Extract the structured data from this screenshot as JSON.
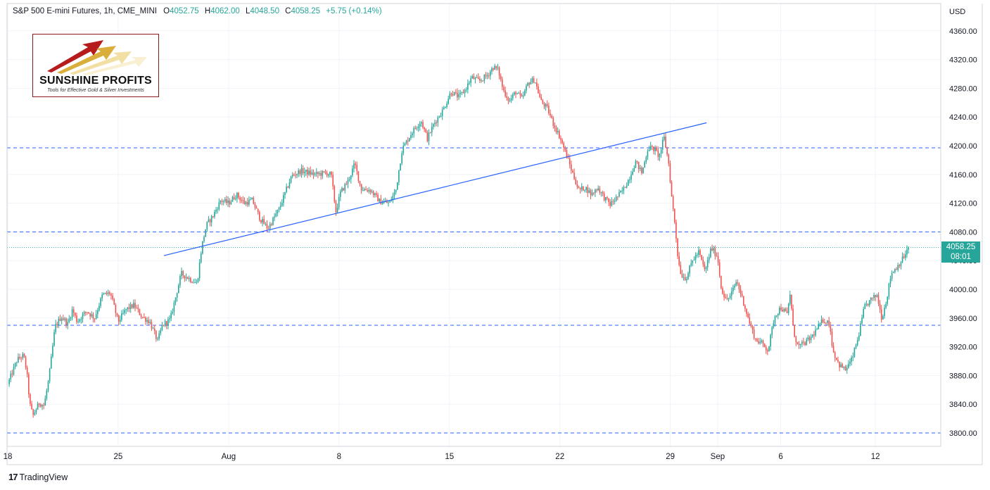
{
  "legend": {
    "symbol": "S&P 500 E-mini Futures, 1h, CME_MINI",
    "open_label": "O",
    "open": "4052.75",
    "high_label": "H",
    "high": "4062.00",
    "low_label": "L",
    "low": "4048.50",
    "close_label": "C",
    "close": "4058.25",
    "change": "+5.75 (+0.14%)"
  },
  "logo": {
    "brand": "SUNSHINE PROFITS",
    "tagline": "Tools for Effective Gold & Silver Investments"
  },
  "price_tag": {
    "price": "4058.25",
    "countdown": "08:01"
  },
  "footer": {
    "icon": "17",
    "brand": "TradingView"
  },
  "colors": {
    "up": "#26a69a",
    "down": "#ef5350",
    "level_line": "#2962ff",
    "trend_line": "#2962ff",
    "grid": "#f0f3fa"
  },
  "chart_data": {
    "type": "candlestick",
    "currency": "USD",
    "ylim": [
      3780,
      4380
    ],
    "y_ticks": [
      "3800.00",
      "3840.00",
      "3880.00",
      "3920.00",
      "3960.00",
      "4000.00",
      "4040.00",
      "4080.00",
      "4120.00",
      "4160.00",
      "4200.00",
      "4240.00",
      "4280.00",
      "4320.00",
      "4360.00"
    ],
    "x_tick_labels": [
      "18",
      "25",
      "Aug",
      "8",
      "15",
      "22",
      "29",
      "Sep",
      "6",
      "12"
    ],
    "x_tick_days": [
      0,
      7,
      14,
      21,
      28,
      35,
      42,
      45,
      49,
      55
    ],
    "xlim_days": [
      0,
      58.4
    ],
    "last_price": 4058.25,
    "horizontal_levels": [
      4197,
      4080,
      3950,
      3800
    ],
    "trend_line": {
      "start": [
        9.9,
        4047
      ],
      "end": [
        44.3,
        4232
      ]
    },
    "price_path": [
      [
        0.0,
        3868
      ],
      [
        0.6,
        3902
      ],
      [
        1.0,
        3908
      ],
      [
        1.2,
        3886
      ],
      [
        1.4,
        3840
      ],
      [
        1.6,
        3824
      ],
      [
        2.0,
        3842
      ],
      [
        2.3,
        3838
      ],
      [
        2.6,
        3875
      ],
      [
        3.0,
        3948
      ],
      [
        3.4,
        3962
      ],
      [
        3.8,
        3952
      ],
      [
        4.1,
        3972
      ],
      [
        4.4,
        3955
      ],
      [
        5.0,
        3970
      ],
      [
        5.5,
        3960
      ],
      [
        6.0,
        3992
      ],
      [
        6.5,
        3995
      ],
      [
        7.0,
        3955
      ],
      [
        7.5,
        3972
      ],
      [
        8.0,
        3978
      ],
      [
        8.5,
        3962
      ],
      [
        9.0,
        3955
      ],
      [
        9.5,
        3928
      ],
      [
        9.8,
        3950
      ],
      [
        10.3,
        3958
      ],
      [
        11.0,
        4022
      ],
      [
        11.5,
        4015
      ],
      [
        12.0,
        4008
      ],
      [
        12.3,
        4060
      ],
      [
        12.6,
        4090
      ],
      [
        13.0,
        4102
      ],
      [
        13.5,
        4124
      ],
      [
        14.0,
        4120
      ],
      [
        14.5,
        4132
      ],
      [
        15.0,
        4120
      ],
      [
        15.5,
        4124
      ],
      [
        16.0,
        4098
      ],
      [
        16.5,
        4085
      ],
      [
        17.2,
        4112
      ],
      [
        18.0,
        4158
      ],
      [
        18.6,
        4165
      ],
      [
        19.5,
        4160
      ],
      [
        20.2,
        4162
      ],
      [
        20.5,
        4160
      ],
      [
        20.8,
        4108
      ],
      [
        21.1,
        4135
      ],
      [
        21.6,
        4152
      ],
      [
        22.0,
        4175
      ],
      [
        22.4,
        4140
      ],
      [
        23.0,
        4138
      ],
      [
        23.6,
        4122
      ],
      [
        24.2,
        4120
      ],
      [
        24.6,
        4138
      ],
      [
        25.0,
        4195
      ],
      [
        25.6,
        4218
      ],
      [
        26.2,
        4235
      ],
      [
        26.6,
        4210
      ],
      [
        27.0,
        4230
      ],
      [
        27.6,
        4250
      ],
      [
        28.1,
        4275
      ],
      [
        28.6,
        4268
      ],
      [
        29.0,
        4278
      ],
      [
        29.4,
        4295
      ],
      [
        29.9,
        4290
      ],
      [
        30.4,
        4298
      ],
      [
        30.8,
        4310
      ],
      [
        31.1,
        4305
      ],
      [
        31.4,
        4278
      ],
      [
        31.8,
        4262
      ],
      [
        32.2,
        4275
      ],
      [
        32.6,
        4265
      ],
      [
        33.0,
        4288
      ],
      [
        33.4,
        4292
      ],
      [
        33.8,
        4262
      ],
      [
        34.2,
        4252
      ],
      [
        34.6,
        4230
      ],
      [
        35.0,
        4212
      ],
      [
        35.4,
        4188
      ],
      [
        35.8,
        4162
      ],
      [
        36.2,
        4138
      ],
      [
        36.6,
        4142
      ],
      [
        37.0,
        4132
      ],
      [
        37.4,
        4142
      ],
      [
        37.8,
        4128
      ],
      [
        38.2,
        4118
      ],
      [
        38.6,
        4128
      ],
      [
        39.0,
        4138
      ],
      [
        39.4,
        4155
      ],
      [
        39.8,
        4178
      ],
      [
        40.2,
        4162
      ],
      [
        40.6,
        4198
      ],
      [
        41.0,
        4195
      ],
      [
        41.3,
        4185
      ],
      [
        41.6,
        4212
      ],
      [
        41.9,
        4175
      ],
      [
        42.1,
        4125
      ],
      [
        42.3,
        4090
      ],
      [
        42.5,
        4040
      ],
      [
        42.7,
        4020
      ],
      [
        43.0,
        4015
      ],
      [
        43.4,
        4040
      ],
      [
        43.8,
        4052
      ],
      [
        44.2,
        4025
      ],
      [
        44.6,
        4058
      ],
      [
        45.0,
        4045
      ],
      [
        45.2,
        4005
      ],
      [
        45.5,
        3985
      ],
      [
        45.8,
        3990
      ],
      [
        46.2,
        4012
      ],
      [
        46.6,
        3985
      ],
      [
        47.0,
        3955
      ],
      [
        47.4,
        3930
      ],
      [
        47.8,
        3925
      ],
      [
        48.2,
        3915
      ],
      [
        48.6,
        3962
      ],
      [
        49.0,
        3975
      ],
      [
        49.4,
        3965
      ],
      [
        49.6,
        3995
      ],
      [
        49.8,
        3942
      ],
      [
        50.1,
        3920
      ],
      [
        50.5,
        3925
      ],
      [
        50.9,
        3932
      ],
      [
        51.3,
        3945
      ],
      [
        51.7,
        3958
      ],
      [
        52.1,
        3952
      ],
      [
        52.3,
        3915
      ],
      [
        52.7,
        3895
      ],
      [
        53.1,
        3888
      ],
      [
        53.5,
        3902
      ],
      [
        53.9,
        3932
      ],
      [
        54.3,
        3975
      ],
      [
        54.7,
        3985
      ],
      [
        55.1,
        3992
      ],
      [
        55.4,
        3960
      ],
      [
        55.7,
        3985
      ],
      [
        56.0,
        4022
      ],
      [
        56.4,
        4032
      ],
      [
        56.8,
        4045
      ],
      [
        57.1,
        4058
      ]
    ]
  }
}
